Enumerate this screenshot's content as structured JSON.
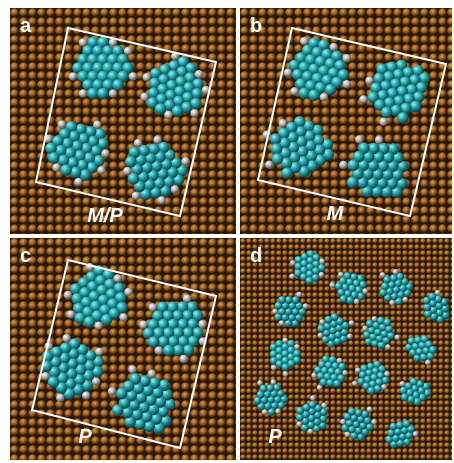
{
  "panels": [
    {
      "label": "a",
      "caption": "M/P"
    },
    {
      "label": "b",
      "caption": "M"
    },
    {
      "label": "c",
      "caption": "P"
    },
    {
      "label": "d",
      "caption": "P"
    }
  ]
}
